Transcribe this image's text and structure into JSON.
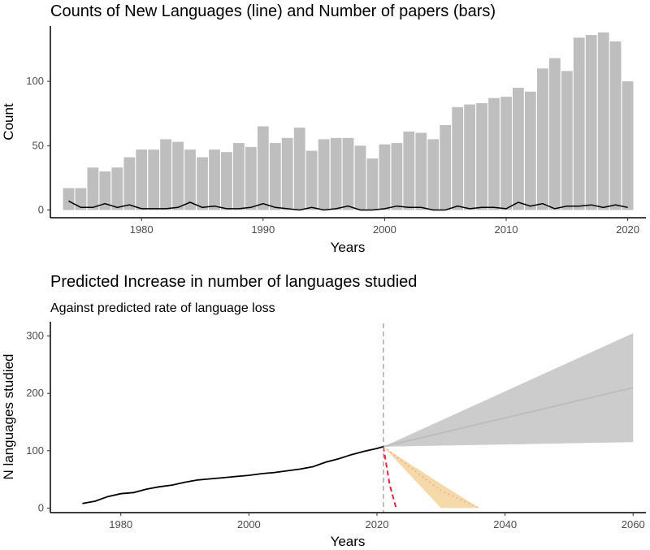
{
  "chart_data": [
    {
      "type": "bar",
      "title": "Counts of New Languages (line) and Number of papers (bars)",
      "xlabel": "Years",
      "ylabel": "Count",
      "xlim": [
        1972.5,
        2021.5
      ],
      "ylim": [
        -6,
        143
      ],
      "xticks": [
        1980,
        1990,
        2000,
        2010,
        2020
      ],
      "yticks": [
        0,
        50,
        100
      ],
      "bar_color": "#bebebe",
      "line_color": "#000000",
      "series": [
        {
          "name": "Number of papers",
          "type": "bar",
          "x": [
            1974,
            1975,
            1976,
            1977,
            1978,
            1979,
            1980,
            1981,
            1982,
            1983,
            1984,
            1985,
            1986,
            1987,
            1988,
            1989,
            1990,
            1991,
            1992,
            1993,
            1994,
            1995,
            1996,
            1997,
            1998,
            1999,
            2000,
            2001,
            2002,
            2003,
            2004,
            2005,
            2006,
            2007,
            2008,
            2009,
            2010,
            2011,
            2012,
            2013,
            2014,
            2015,
            2016,
            2017,
            2018,
            2019,
            2020
          ],
          "values": [
            17,
            17,
            33,
            30,
            33,
            41,
            47,
            47,
            55,
            53,
            47,
            41,
            47,
            45,
            52,
            49,
            65,
            52,
            56,
            64,
            46,
            55,
            56,
            56,
            50,
            40,
            51,
            52,
            61,
            60,
            55,
            66,
            80,
            82,
            83,
            87,
            88,
            95,
            92,
            110,
            118,
            108,
            134,
            136,
            138,
            131,
            100
          ]
        },
        {
          "name": "Counts of New Languages",
          "type": "line",
          "x": [
            1974,
            1975,
            1976,
            1977,
            1978,
            1979,
            1980,
            1981,
            1982,
            1983,
            1984,
            1985,
            1986,
            1987,
            1988,
            1989,
            1990,
            1991,
            1992,
            1993,
            1994,
            1995,
            1996,
            1997,
            1998,
            1999,
            2000,
            2001,
            2002,
            2003,
            2004,
            2005,
            2006,
            2007,
            2008,
            2009,
            2010,
            2011,
            2012,
            2013,
            2014,
            2015,
            2016,
            2017,
            2018,
            2019,
            2020
          ],
          "values": [
            7,
            2,
            2,
            5,
            2,
            4,
            1,
            1,
            1,
            2,
            6,
            2,
            3,
            1,
            1,
            2,
            5,
            2,
            1,
            0,
            2,
            0,
            1,
            3,
            0,
            0,
            1,
            3,
            2,
            2,
            0,
            0,
            3,
            1,
            2,
            2,
            1,
            6,
            3,
            5,
            1,
            3,
            3,
            4,
            2,
            4,
            2
          ]
        }
      ]
    },
    {
      "type": "line",
      "title": "Predicted Increase in number of languages studied",
      "subtitle": "Against predicted rate of language loss",
      "xlabel": "Years",
      "ylabel": "N languages studied",
      "xlim": [
        1969,
        2062
      ],
      "ylim": [
        -8,
        325
      ],
      "xticks": [
        1980,
        2000,
        2020,
        2040,
        2060
      ],
      "yticks": [
        0,
        100,
        200,
        300
      ],
      "vline_x": 2021,
      "observed": {
        "color": "#000000",
        "x": [
          1974,
          1976,
          1978,
          1980,
          1982,
          1984,
          1986,
          1988,
          1990,
          1992,
          1994,
          1996,
          1998,
          2000,
          2002,
          2004,
          2006,
          2008,
          2010,
          2012,
          2014,
          2016,
          2018,
          2020,
          2021
        ],
        "values": [
          8,
          12,
          20,
          25,
          27,
          33,
          37,
          40,
          45,
          49,
          51,
          53,
          55,
          57,
          60,
          62,
          65,
          68,
          72,
          80,
          86,
          93,
          99,
          104,
          107
        ]
      },
      "prediction_band": {
        "color": "#cccccc",
        "line_color": "#bdbdbd",
        "x": [
          2021,
          2060
        ],
        "mean": [
          107,
          210
        ],
        "lower": [
          107,
          115
        ],
        "upper": [
          107,
          305
        ]
      },
      "loss_band": {
        "color": "#f5d9a8",
        "x": [
          2021,
          2030,
          2036
        ],
        "upper": [
          107,
          42,
          0
        ],
        "lower": [
          107,
          0,
          0
        ],
        "dotted_line": {
          "color": "#e6a0a0",
          "x": [
            2021,
            2030,
            2036
          ],
          "values": [
            107,
            30,
            0
          ]
        }
      },
      "loss_fast": {
        "color": "#e8213f",
        "x": [
          2021,
          2022,
          2023
        ],
        "values": [
          107,
          40,
          0
        ]
      }
    }
  ]
}
